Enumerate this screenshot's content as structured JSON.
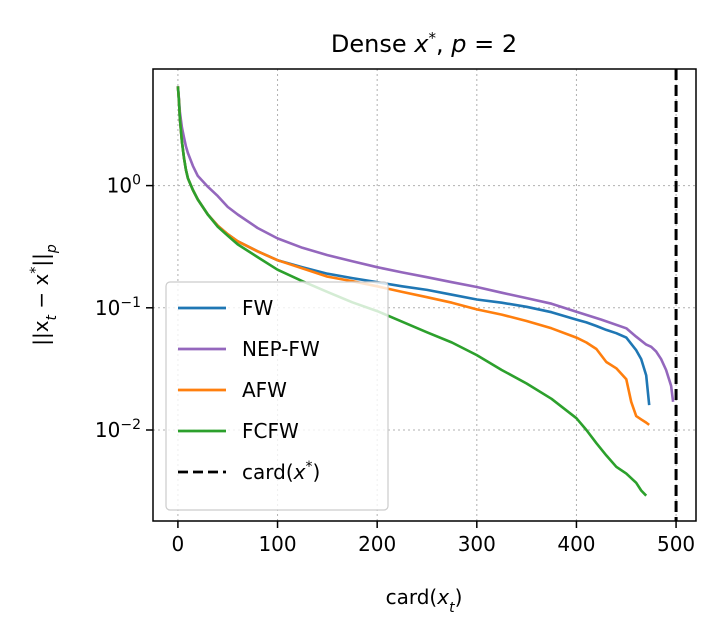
{
  "chart_data": {
    "type": "line",
    "title": {
      "prefix": "Dense ",
      "var": "x",
      "sup": "*",
      "mid": ", ",
      "p": "p",
      "eq": " = 2"
    },
    "xlabel": {
      "pre": "card(",
      "var": "x",
      "sub": "t",
      "post": ")"
    },
    "ylabel": {
      "text": "||x",
      "sub1": "t",
      "mid": " − x",
      "sup": "*",
      "close": "||",
      "sub2": "p"
    },
    "xlim": [
      -25,
      520
    ],
    "ylim": [
      0.0018,
      9
    ],
    "y_scale": "log",
    "grid": true,
    "grid_style": "dotted",
    "legend_position": "lower-left",
    "x_ticks": [
      0,
      100,
      200,
      300,
      400,
      500
    ],
    "y_ticks": [
      {
        "value": 1,
        "base": "10",
        "exp": "0"
      },
      {
        "value": 0.1,
        "base": "10",
        "exp": "−1"
      },
      {
        "value": 0.01,
        "base": "10",
        "exp": "−2"
      }
    ],
    "series": [
      {
        "name": "FW",
        "color": "#1f77b4",
        "dash": "solid",
        "x": [
          0,
          1,
          2,
          4,
          6,
          8,
          10,
          15,
          20,
          30,
          40,
          50,
          60,
          80,
          100,
          125,
          150,
          175,
          200,
          225,
          250,
          275,
          300,
          325,
          350,
          375,
          400,
          410,
          420,
          430,
          440,
          450,
          460,
          465,
          470,
          473
        ],
        "y": [
          6.5,
          5.0,
          3.5,
          2.3,
          1.7,
          1.35,
          1.15,
          0.92,
          0.77,
          0.58,
          0.47,
          0.4,
          0.35,
          0.29,
          0.245,
          0.215,
          0.19,
          0.175,
          0.162,
          0.15,
          0.14,
          0.128,
          0.117,
          0.11,
          0.102,
          0.092,
          0.08,
          0.076,
          0.071,
          0.066,
          0.062,
          0.057,
          0.045,
          0.038,
          0.028,
          0.016
        ]
      },
      {
        "name": "NEP-FW",
        "color": "#9467bd",
        "dash": "solid",
        "x": [
          0,
          1,
          2,
          4,
          6,
          8,
          10,
          15,
          20,
          30,
          40,
          50,
          60,
          80,
          100,
          125,
          150,
          175,
          200,
          225,
          250,
          275,
          300,
          325,
          350,
          375,
          400,
          425,
          450,
          460,
          470,
          475,
          480,
          485,
          490,
          495,
          497
        ],
        "y": [
          6.5,
          5.2,
          4.0,
          3.0,
          2.5,
          2.1,
          1.85,
          1.45,
          1.2,
          0.98,
          0.82,
          0.67,
          0.58,
          0.45,
          0.37,
          0.31,
          0.27,
          0.24,
          0.215,
          0.195,
          0.178,
          0.162,
          0.148,
          0.133,
          0.12,
          0.108,
          0.093,
          0.08,
          0.068,
          0.058,
          0.05,
          0.048,
          0.044,
          0.038,
          0.031,
          0.023,
          0.017
        ]
      },
      {
        "name": "AFW",
        "color": "#ff7f0e",
        "dash": "solid",
        "x": [
          0,
          1,
          2,
          4,
          6,
          8,
          10,
          15,
          20,
          30,
          40,
          50,
          60,
          80,
          100,
          125,
          150,
          175,
          200,
          225,
          250,
          275,
          300,
          325,
          350,
          375,
          400,
          410,
          420,
          430,
          440,
          450,
          455,
          460,
          465,
          470,
          473
        ],
        "y": [
          6.5,
          5.0,
          3.5,
          2.3,
          1.7,
          1.35,
          1.15,
          0.92,
          0.77,
          0.58,
          0.47,
          0.4,
          0.35,
          0.29,
          0.245,
          0.21,
          0.18,
          0.165,
          0.15,
          0.135,
          0.122,
          0.11,
          0.097,
          0.088,
          0.078,
          0.068,
          0.057,
          0.052,
          0.046,
          0.036,
          0.032,
          0.026,
          0.017,
          0.013,
          0.0122,
          0.0115,
          0.011
        ]
      },
      {
        "name": "FCFW",
        "color": "#2ca02c",
        "dash": "solid",
        "x": [
          0,
          1,
          2,
          4,
          6,
          8,
          10,
          15,
          20,
          30,
          40,
          50,
          60,
          80,
          100,
          125,
          150,
          175,
          200,
          225,
          250,
          275,
          300,
          325,
          350,
          375,
          400,
          410,
          420,
          430,
          440,
          450,
          460,
          465,
          470
        ],
        "y": [
          6.5,
          5.0,
          3.5,
          2.3,
          1.7,
          1.35,
          1.15,
          0.92,
          0.77,
          0.58,
          0.46,
          0.39,
          0.33,
          0.26,
          0.205,
          0.165,
          0.135,
          0.111,
          0.094,
          0.077,
          0.063,
          0.052,
          0.041,
          0.031,
          0.024,
          0.018,
          0.0125,
          0.01,
          0.0078,
          0.0062,
          0.005,
          0.0044,
          0.0037,
          0.0032,
          0.0029
        ]
      },
      {
        "name": "card(x*)",
        "color": "#000000",
        "dash": "dashed",
        "vertical_x": 500
      }
    ],
    "legend": [
      {
        "label": "FW",
        "color": "#1f77b4",
        "dash": "solid"
      },
      {
        "label": "NEP-FW",
        "color": "#9467bd",
        "dash": "solid"
      },
      {
        "label": "AFW",
        "color": "#ff7f0e",
        "dash": "solid"
      },
      {
        "label": "FCFW",
        "color": "#2ca02c",
        "dash": "solid"
      },
      {
        "label_pre": "card(",
        "label_var": "x",
        "label_sup": "*",
        "label_post": ")",
        "color": "#000000",
        "dash": "dashed"
      }
    ]
  }
}
